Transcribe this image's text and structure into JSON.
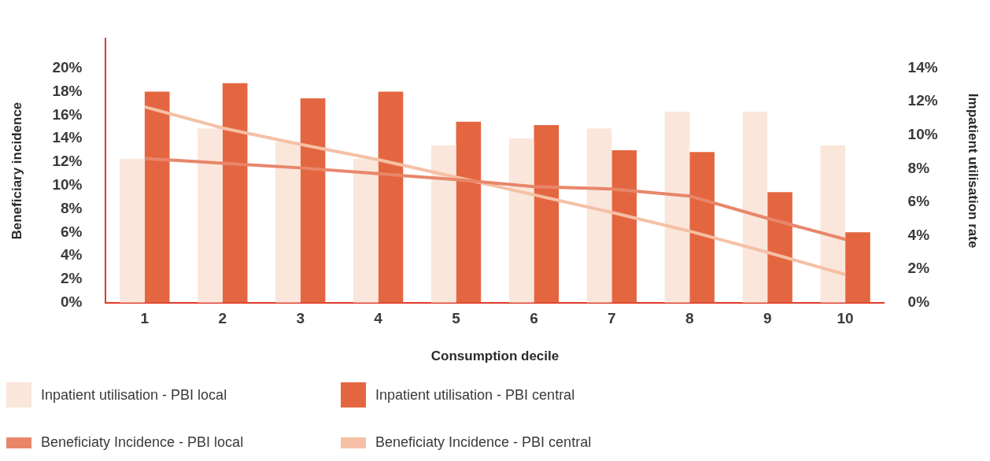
{
  "chart_data": {
    "type": "bar",
    "xlabel": "Consumption decile",
    "ylabel": "Beneficiary incidence",
    "y2label": "Impatient utilisation rate",
    "categories": [
      "1",
      "2",
      "3",
      "4",
      "5",
      "6",
      "7",
      "8",
      "9",
      "10"
    ],
    "series": [
      {
        "name": "Inpatient utilisation - PBI local",
        "color": "#fae6db",
        "axis": "y2",
        "values": [
          8.6,
          10.4,
          9.6,
          8.6,
          9.4,
          9.8,
          10.4,
          11.4,
          11.4,
          9.4
        ]
      },
      {
        "name": "Inpatient utilisation - PBI central",
        "color": "#e46640",
        "axis": "y2",
        "values": [
          12.6,
          13.1,
          12.2,
          12.6,
          10.8,
          10.6,
          9.1,
          9.0,
          6.6,
          4.2
        ]
      },
      {
        "name": "Beneficiaty Incidence - PBI local",
        "type": "line",
        "color": "#e8866a",
        "values": [
          12.3,
          11.9,
          11.5,
          11.0,
          10.5,
          9.9,
          9.7,
          9.1,
          7.2,
          5.4
        ]
      },
      {
        "name": "Beneficiaty Incidence - PBI central",
        "type": "line",
        "color": "#f5c0a5",
        "values": [
          16.7,
          14.9,
          13.5,
          12.2,
          10.7,
          9.2,
          7.7,
          6.1,
          4.3,
          2.4
        ]
      }
    ],
    "ylim": [
      0,
      22.5
    ],
    "yticks": [
      {
        "value": 0,
        "label": "0%"
      },
      {
        "value": 2,
        "label": "2%"
      },
      {
        "value": 4,
        "label": "4%"
      },
      {
        "value": 6,
        "label": "6%"
      },
      {
        "value": 8,
        "label": "8%"
      },
      {
        "value": 10,
        "label": "10%"
      },
      {
        "value": 12,
        "label": "12%"
      },
      {
        "value": 14,
        "label": "14%"
      },
      {
        "value": 16,
        "label": "16%"
      },
      {
        "value": 18,
        "label": "18%"
      },
      {
        "value": 20,
        "label": "20%"
      }
    ],
    "y2lim": [
      0,
      15.75
    ],
    "y2ticks": [
      {
        "value": 0,
        "label": "0%"
      },
      {
        "value": 2,
        "label": "2%"
      },
      {
        "value": 4,
        "label": "4%"
      },
      {
        "value": 6,
        "label": "6%"
      },
      {
        "value": 8,
        "label": "8%"
      },
      {
        "value": 10,
        "label": "10%"
      },
      {
        "value": 12,
        "label": "12%"
      },
      {
        "value": 14,
        "label": "14%"
      }
    ],
    "grid": false,
    "legend": "bottom",
    "marker": "none",
    "line_style": "solid"
  }
}
